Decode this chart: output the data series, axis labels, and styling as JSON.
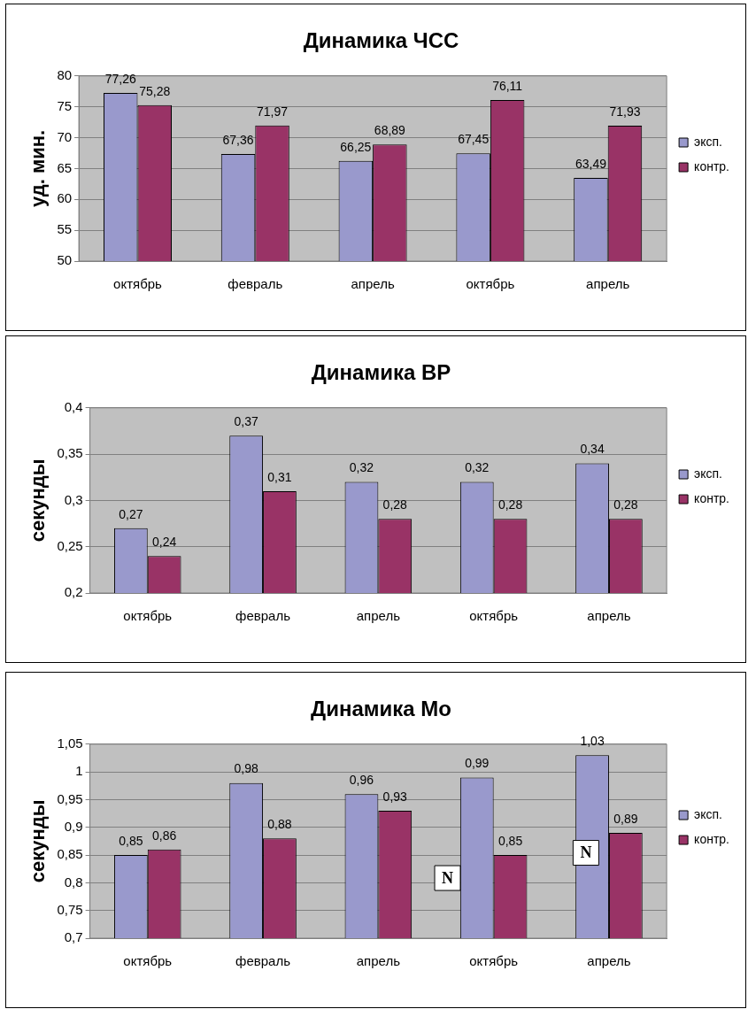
{
  "chart_data": [
    {
      "type": "bar",
      "title": "Динамика ЧСС",
      "ylabel": "уд. мин.",
      "categories": [
        "октябрь",
        "февраль",
        "апрель",
        "октябрь",
        "апрель"
      ],
      "series": [
        {
          "name": "эксп.",
          "color": "#9999cc",
          "values": [
            77.26,
            67.36,
            66.25,
            67.45,
            63.49
          ],
          "value_labels": [
            "77,26",
            "67,36",
            "66,25",
            "67,45",
            "63,49"
          ]
        },
        {
          "name": "контр.",
          "color": "#993366",
          "values": [
            75.28,
            71.97,
            68.89,
            76.11,
            71.93
          ],
          "value_labels": [
            "75,28",
            "71,97",
            "68,89",
            "76,11",
            "71,93"
          ]
        }
      ],
      "ylim": [
        50,
        80
      ],
      "yticks": [
        50,
        55,
        60,
        65,
        70,
        75,
        80
      ],
      "grid": "y",
      "legend": "right"
    },
    {
      "type": "bar",
      "title": "Динамика ВР",
      "ylabel": "секунды",
      "categories": [
        "октябрь",
        "февраль",
        "апрель",
        "октябрь",
        "апрель"
      ],
      "series": [
        {
          "name": "эксп.",
          "color": "#9999cc",
          "values": [
            0.27,
            0.37,
            0.32,
            0.32,
            0.34
          ],
          "value_labels": [
            "0,27",
            "0,37",
            "0,32",
            "0,32",
            "0,34"
          ]
        },
        {
          "name": "контр.",
          "color": "#993366",
          "values": [
            0.24,
            0.31,
            0.28,
            0.28,
            0.28
          ],
          "value_labels": [
            "0,24",
            "0,31",
            "0,28",
            "0,28",
            "0,28"
          ]
        }
      ],
      "ylim": [
        0.2,
        0.4
      ],
      "yticks": [
        {
          "value": 0.2,
          "label": "0,2"
        },
        {
          "value": 0.25,
          "label": "0,25"
        },
        {
          "value": 0.3,
          "label": "0,3"
        },
        {
          "value": 0.35,
          "label": "0,35"
        },
        {
          "value": 0.4,
          "label": "0,4"
        }
      ],
      "grid": "y",
      "legend": "right"
    },
    {
      "type": "bar",
      "title": "Динамика Мо",
      "ylabel": "секунды",
      "categories": [
        "октябрь",
        "февраль",
        "апрель",
        "октябрь",
        "апрель"
      ],
      "series": [
        {
          "name": "эксп.",
          "color": "#9999cc",
          "values": [
            0.85,
            0.98,
            0.96,
            0.99,
            1.03
          ],
          "value_labels": [
            "0,85",
            "0,98",
            "0,96",
            "0,99",
            "1,03"
          ]
        },
        {
          "name": "контр.",
          "color": "#993366",
          "values": [
            0.86,
            0.88,
            0.93,
            0.85,
            0.89
          ],
          "value_labels": [
            "0,86",
            "0,88",
            "0,93",
            "0,85",
            "0,89"
          ]
        }
      ],
      "ylim": [
        0.7,
        1.05
      ],
      "yticks": [
        {
          "value": 0.7,
          "label": "0,7"
        },
        {
          "value": 0.75,
          "label": "0,75"
        },
        {
          "value": 0.8,
          "label": "0,8"
        },
        {
          "value": 0.85,
          "label": "0,85"
        },
        {
          "value": 0.9,
          "label": "0,9"
        },
        {
          "value": 0.95,
          "label": "0,95"
        },
        1,
        {
          "value": 1.05,
          "label": "1,05"
        }
      ],
      "grid": "y",
      "legend": "right",
      "annotations": [
        "N",
        "N"
      ]
    }
  ]
}
